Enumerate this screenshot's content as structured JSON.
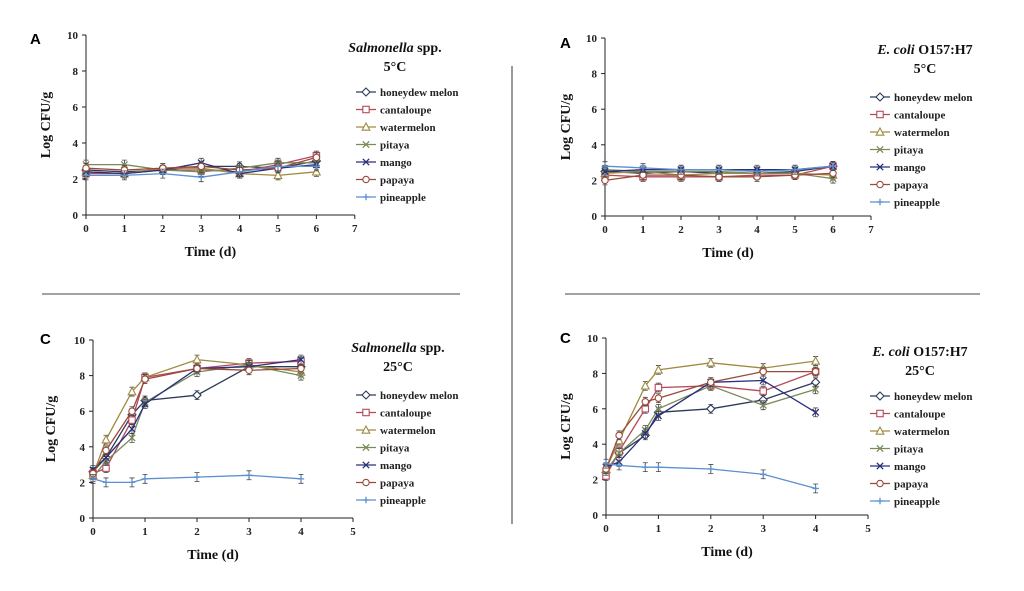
{
  "legend_items": [
    "honeydew melon",
    "cantaloupe",
    "watermelon",
    "pitaya",
    "mango",
    "papaya",
    "pineapple"
  ],
  "colors": {
    "honeydew melon": "#2d3a5c",
    "cantaloupe": "#b5485a",
    "watermelon": "#a08a40",
    "pitaya": "#7a8a5a",
    "mango": "#2a2f7a",
    "papaya": "#9a4a3a",
    "pineapple": "#5b8fd0"
  },
  "chart_data": [
    {
      "type": "line",
      "panel_label": "A",
      "title_italic": "Salmonella",
      "title_rest": " spp.",
      "title_temp": "5°C",
      "xlabel": "Time (d)",
      "ylabel": "Log CFU/g",
      "xlim": [
        0,
        7
      ],
      "ylim": [
        0,
        10
      ],
      "xticks": [
        "0",
        "1",
        "2",
        "3",
        "4",
        "5",
        "6",
        "7"
      ],
      "yticks": [
        "0",
        "2",
        "4",
        "6",
        "8",
        "10"
      ],
      "x": [
        0,
        1,
        2,
        3,
        4,
        5,
        6
      ],
      "series": [
        {
          "name": "honeydew melon",
          "values": [
            2.5,
            2.4,
            2.5,
            2.7,
            2.7,
            2.6,
            3.0
          ]
        },
        {
          "name": "cantaloupe",
          "values": [
            2.3,
            2.3,
            2.5,
            2.5,
            2.4,
            2.8,
            3.3
          ]
        },
        {
          "name": "watermelon",
          "values": [
            2.4,
            2.3,
            2.6,
            2.6,
            2.3,
            2.2,
            2.4
          ]
        },
        {
          "name": "pitaya",
          "values": [
            2.8,
            2.8,
            2.5,
            2.4,
            2.6,
            2.9,
            2.9
          ]
        },
        {
          "name": "mango",
          "values": [
            2.4,
            2.3,
            2.5,
            2.9,
            2.3,
            2.6,
            2.8
          ]
        },
        {
          "name": "papaya",
          "values": [
            2.6,
            2.5,
            2.6,
            2.7,
            2.5,
            2.6,
            3.2
          ]
        },
        {
          "name": "pineapple",
          "values": [
            2.2,
            2.2,
            2.3,
            2.1,
            2.4,
            2.7,
            2.7
          ]
        }
      ]
    },
    {
      "type": "line",
      "panel_label": "A",
      "title_italic": "E. coli",
      "title_rest": " O157:H7",
      "title_temp": "5°C",
      "xlabel": "Time (d)",
      "ylabel": "Log CFU/g",
      "xlim": [
        0,
        7
      ],
      "ylim": [
        0,
        10
      ],
      "xticks": [
        "0",
        "1",
        "2",
        "3",
        "4",
        "5",
        "6",
        "7"
      ],
      "yticks": [
        "0",
        "2",
        "4",
        "6",
        "8",
        "10"
      ],
      "x": [
        0,
        1,
        2,
        3,
        4,
        5,
        6
      ],
      "series": [
        {
          "name": "honeydew melon",
          "values": [
            2.5,
            2.4,
            2.5,
            2.4,
            2.4,
            2.5,
            2.8
          ]
        },
        {
          "name": "cantaloupe",
          "values": [
            2.3,
            2.2,
            2.2,
            2.2,
            2.3,
            2.3,
            2.8
          ]
        },
        {
          "name": "watermelon",
          "values": [
            2.4,
            2.5,
            2.3,
            2.4,
            2.4,
            2.4,
            2.3
          ]
        },
        {
          "name": "pitaya",
          "values": [
            2.6,
            2.5,
            2.5,
            2.5,
            2.4,
            2.4,
            2.1
          ]
        },
        {
          "name": "mango",
          "values": [
            2.5,
            2.6,
            2.6,
            2.6,
            2.6,
            2.6,
            2.8
          ]
        },
        {
          "name": "papaya",
          "values": [
            2.0,
            2.3,
            2.3,
            2.2,
            2.2,
            2.3,
            2.4
          ]
        },
        {
          "name": "pineapple",
          "values": [
            2.8,
            2.7,
            2.6,
            2.6,
            2.5,
            2.6,
            2.8
          ]
        }
      ]
    },
    {
      "type": "line",
      "panel_label": "C",
      "title_italic": "Salmonella",
      "title_rest": " spp.",
      "title_temp": "25°C",
      "xlabel": "Time (d)",
      "ylabel": "Log CFU/g",
      "xlim": [
        0,
        5
      ],
      "ylim": [
        0,
        10
      ],
      "xticks": [
        "0",
        "1",
        "2",
        "3",
        "4",
        "5"
      ],
      "yticks": [
        "0",
        "2",
        "4",
        "6",
        "8",
        "10"
      ],
      "x": [
        0,
        0.25,
        0.75,
        1,
        2,
        3,
        4
      ],
      "series": [
        {
          "name": "honeydew melon",
          "values": [
            2.6,
            3.4,
            5.8,
            6.6,
            6.9,
            8.5,
            8.5
          ]
        },
        {
          "name": "cantaloupe",
          "values": [
            2.5,
            2.8,
            5.5,
            7.9,
            8.4,
            8.7,
            8.8
          ]
        },
        {
          "name": "watermelon",
          "values": [
            2.4,
            4.4,
            7.1,
            7.9,
            8.9,
            8.6,
            8.2
          ]
        },
        {
          "name": "pitaya",
          "values": [
            2.3,
            3.2,
            4.5,
            6.5,
            8.2,
            8.6,
            8.0
          ]
        },
        {
          "name": "mango",
          "values": [
            2.7,
            3.4,
            5.0,
            6.4,
            8.4,
            8.5,
            8.9
          ]
        },
        {
          "name": "papaya",
          "values": [
            2.5,
            3.8,
            6.0,
            7.8,
            8.4,
            8.3,
            8.4
          ]
        },
        {
          "name": "pineapple",
          "values": [
            2.2,
            2.0,
            2.0,
            2.2,
            2.3,
            2.4,
            2.2
          ]
        }
      ]
    },
    {
      "type": "line",
      "panel_label": "C",
      "title_italic": "E. coli",
      "title_rest": " O157:H7",
      "title_temp": "25°C",
      "xlabel": "Time (d)",
      "ylabel": "Log CFU/g",
      "xlim": [
        0,
        5
      ],
      "ylim": [
        0,
        10
      ],
      "xticks": [
        "0",
        "1",
        "2",
        "3",
        "4",
        "5"
      ],
      "yticks": [
        "0",
        "2",
        "4",
        "6",
        "8",
        "10"
      ],
      "x": [
        0,
        0.25,
        0.75,
        1,
        2,
        3,
        4
      ],
      "series": [
        {
          "name": "honeydew melon",
          "values": [
            2.4,
            3.5,
            4.5,
            5.8,
            6.0,
            6.5,
            7.5
          ]
        },
        {
          "name": "cantaloupe",
          "values": [
            2.2,
            3.6,
            6.0,
            7.2,
            7.3,
            7.0,
            8.1
          ]
        },
        {
          "name": "watermelon",
          "values": [
            2.6,
            4.2,
            7.3,
            8.2,
            8.6,
            8.3,
            8.7
          ]
        },
        {
          "name": "pitaya",
          "values": [
            2.5,
            3.5,
            4.8,
            6.0,
            7.3,
            6.2,
            7.1
          ]
        },
        {
          "name": "mango",
          "values": [
            2.7,
            3.0,
            4.6,
            5.6,
            7.5,
            7.6,
            5.8
          ]
        },
        {
          "name": "papaya",
          "values": [
            2.6,
            4.5,
            6.4,
            6.6,
            7.5,
            8.1,
            8.1
          ]
        },
        {
          "name": "pineapple",
          "values": [
            2.9,
            2.8,
            2.7,
            2.7,
            2.6,
            2.3,
            1.5
          ]
        }
      ]
    }
  ]
}
